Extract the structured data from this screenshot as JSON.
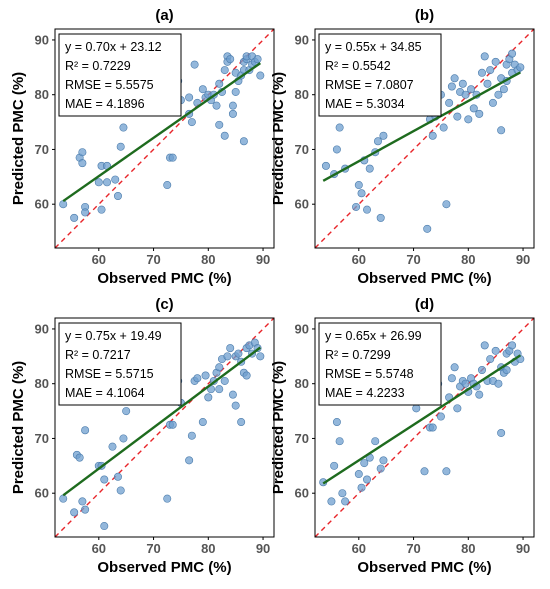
{
  "chart_data": [
    {
      "type": "scatter",
      "title": "(a)",
      "xlabel": "Observed PMC (%)",
      "ylabel": "Predicted PMC (%)",
      "xlim": [
        52,
        92
      ],
      "ylim": [
        52,
        92
      ],
      "x_ticks": [
        "60",
        "70",
        "80",
        "90"
      ],
      "y_ticks": [
        "60",
        "70",
        "80",
        "90"
      ],
      "grid": false,
      "reference_line": "y = x",
      "fit": {
        "slope": 0.7,
        "intercept": 23.12,
        "x_range": [
          53.5,
          89.5
        ]
      },
      "stats": [
        "y = 0.70x + 23.12",
        "R² = 0.7229",
        "RMSE = 5.5575",
        "MAE = 4.1896"
      ],
      "points": [
        [
          53.5,
          60
        ],
        [
          55.5,
          57.5
        ],
        [
          56.5,
          68.5
        ],
        [
          57,
          69.5
        ],
        [
          57,
          67.5
        ],
        [
          57.5,
          59.5
        ],
        [
          57.5,
          58.5
        ],
        [
          60,
          64
        ],
        [
          60.5,
          59
        ],
        [
          60.5,
          67
        ],
        [
          61.5,
          64
        ],
        [
          61.5,
          67
        ],
        [
          63,
          64.5
        ],
        [
          63.5,
          61.5
        ],
        [
          64,
          70.5
        ],
        [
          64.5,
          74
        ],
        [
          70.5,
          79.5
        ],
        [
          72.5,
          63.5
        ],
        [
          73,
          68.5
        ],
        [
          73.5,
          68.5
        ],
        [
          74.5,
          82.5
        ],
        [
          75,
          79
        ],
        [
          76.5,
          79.5
        ],
        [
          76.5,
          76.5
        ],
        [
          77,
          75
        ],
        [
          77.5,
          85.5
        ],
        [
          78,
          78.5
        ],
        [
          79,
          81
        ],
        [
          79.5,
          79.5
        ],
        [
          80,
          80
        ],
        [
          80.5,
          79
        ],
        [
          81,
          80
        ],
        [
          81.5,
          78
        ],
        [
          82,
          82
        ],
        [
          82,
          74.5
        ],
        [
          82.5,
          80.5
        ],
        [
          83,
          84.5
        ],
        [
          83,
          72.5
        ],
        [
          83.5,
          87
        ],
        [
          83.5,
          86
        ],
        [
          84,
          86.5
        ],
        [
          84.5,
          76.5
        ],
        [
          84.5,
          78
        ],
        [
          85,
          80.5
        ],
        [
          85,
          84
        ],
        [
          85.5,
          82.5
        ],
        [
          86,
          83.5
        ],
        [
          86.5,
          86
        ],
        [
          86.5,
          84.5
        ],
        [
          86.5,
          71.5
        ],
        [
          87,
          86.5
        ],
        [
          87,
          87
        ],
        [
          87.5,
          84.5
        ],
        [
          88,
          87
        ],
        [
          88,
          85.5
        ],
        [
          88.5,
          86
        ],
        [
          89,
          86.5
        ],
        [
          89.5,
          83.5
        ]
      ]
    },
    {
      "type": "scatter",
      "title": "(b)",
      "xlabel": "Observed PMC (%)",
      "ylabel": "Predicted PMC (%)",
      "xlim": [
        52,
        92
      ],
      "ylim": [
        52,
        92
      ],
      "x_ticks": [
        "60",
        "70",
        "80",
        "90"
      ],
      "y_ticks": [
        "60",
        "70",
        "80",
        "90"
      ],
      "grid": false,
      "reference_line": "y = x",
      "fit": {
        "slope": 0.55,
        "intercept": 34.85,
        "x_range": [
          53.5,
          89.5
        ]
      },
      "stats": [
        "y = 0.55x + 34.85",
        "R² = 0.5542",
        "RMSE = 7.0807",
        "MAE = 5.3034"
      ],
      "points": [
        [
          54,
          67
        ],
        [
          55.5,
          65.5
        ],
        [
          56,
          70
        ],
        [
          56.5,
          74
        ],
        [
          57.5,
          66.5
        ],
        [
          59.5,
          59.5
        ],
        [
          60,
          63.5
        ],
        [
          60.5,
          62
        ],
        [
          61,
          68
        ],
        [
          61.5,
          59
        ],
        [
          62,
          66.5
        ],
        [
          63,
          69.5
        ],
        [
          63.5,
          71.5
        ],
        [
          64,
          57.5
        ],
        [
          64.5,
          72.5
        ],
        [
          72.5,
          55.5
        ],
        [
          73,
          75.5
        ],
        [
          73.5,
          72.5
        ],
        [
          74,
          76
        ],
        [
          75,
          80
        ],
        [
          75.5,
          74
        ],
        [
          76,
          60
        ],
        [
          76.5,
          78.5
        ],
        [
          77,
          81.5
        ],
        [
          77.5,
          83
        ],
        [
          78,
          76
        ],
        [
          78.5,
          80.5
        ],
        [
          79,
          82
        ],
        [
          79.5,
          80
        ],
        [
          80,
          75.5
        ],
        [
          80.5,
          81
        ],
        [
          81,
          77.5
        ],
        [
          81.5,
          80
        ],
        [
          82,
          76.5
        ],
        [
          82.5,
          84
        ],
        [
          83,
          87
        ],
        [
          83.5,
          82
        ],
        [
          84,
          84.5
        ],
        [
          84.5,
          78.5
        ],
        [
          85,
          86
        ],
        [
          85.5,
          80
        ],
        [
          86,
          73.5
        ],
        [
          86,
          83
        ],
        [
          86.5,
          81
        ],
        [
          87,
          85.5
        ],
        [
          87,
          82.5
        ],
        [
          87.5,
          86.5
        ],
        [
          88,
          87.5
        ],
        [
          88,
          84
        ],
        [
          88.5,
          85.5
        ],
        [
          89,
          84.5
        ],
        [
          89.5,
          85
        ]
      ]
    },
    {
      "type": "scatter",
      "title": "(c)",
      "xlabel": "Observed PMC (%)",
      "ylabel": "Predicted PMC (%)",
      "xlim": [
        52,
        92
      ],
      "ylim": [
        52,
        92
      ],
      "x_ticks": [
        "60",
        "70",
        "80",
        "90"
      ],
      "y_ticks": [
        "60",
        "70",
        "80",
        "90"
      ],
      "grid": false,
      "reference_line": "y = x",
      "fit": {
        "slope": 0.75,
        "intercept": 19.49,
        "x_range": [
          53.5,
          89.5
        ]
      },
      "stats": [
        "y = 0.75x + 19.49",
        "R² = 0.7217",
        "RMSE = 5.5715",
        "MAE = 4.1064"
      ],
      "points": [
        [
          53.5,
          59
        ],
        [
          55.5,
          56.5
        ],
        [
          56,
          67
        ],
        [
          56.5,
          66.5
        ],
        [
          57,
          58.5
        ],
        [
          57.5,
          57
        ],
        [
          57.5,
          71.5
        ],
        [
          60,
          65
        ],
        [
          60.5,
          65
        ],
        [
          61,
          54
        ],
        [
          61,
          62.5
        ],
        [
          62.5,
          68.5
        ],
        [
          63.5,
          63
        ],
        [
          64,
          60.5
        ],
        [
          64.5,
          70
        ],
        [
          65,
          75
        ],
        [
          70.5,
          80
        ],
        [
          72.5,
          59
        ],
        [
          73,
          72.5
        ],
        [
          73.5,
          72.5
        ],
        [
          74.5,
          80.5
        ],
        [
          75,
          76.5
        ],
        [
          76.5,
          66
        ],
        [
          77,
          70.5
        ],
        [
          77.5,
          80.5
        ],
        [
          78,
          81
        ],
        [
          79,
          73
        ],
        [
          79.5,
          81.5
        ],
        [
          80,
          77.5
        ],
        [
          80.5,
          79
        ],
        [
          81,
          80.5
        ],
        [
          81.5,
          82
        ],
        [
          82,
          79
        ],
        [
          82,
          83
        ],
        [
          82.5,
          84.5
        ],
        [
          83,
          80.5
        ],
        [
          83.5,
          85
        ],
        [
          84,
          86.5
        ],
        [
          84.5,
          78
        ],
        [
          85,
          76
        ],
        [
          85,
          85
        ],
        [
          85.5,
          85.5
        ],
        [
          86,
          84
        ],
        [
          86,
          73
        ],
        [
          86.5,
          82
        ],
        [
          87,
          86.5
        ],
        [
          87,
          81.5
        ],
        [
          87.5,
          87
        ],
        [
          88,
          85.5
        ],
        [
          88.5,
          87.5
        ],
        [
          89,
          86.5
        ],
        [
          89.5,
          85
        ]
      ]
    },
    {
      "type": "scatter",
      "title": "(d)",
      "xlabel": "Observed PMC (%)",
      "ylabel": "Predicted PMC (%)",
      "xlim": [
        52,
        92
      ],
      "ylim": [
        52,
        92
      ],
      "x_ticks": [
        "60",
        "70",
        "80",
        "90"
      ],
      "y_ticks": [
        "60",
        "70",
        "80",
        "90"
      ],
      "grid": false,
      "reference_line": "y = x",
      "fit": {
        "slope": 0.65,
        "intercept": 26.99,
        "x_range": [
          53.5,
          89.5
        ]
      },
      "stats": [
        "y = 0.65x + 26.99",
        "R² = 0.7299",
        "RMSE = 5.5748",
        "MAE = 4.2233"
      ],
      "points": [
        [
          53.5,
          62
        ],
        [
          55,
          58.5
        ],
        [
          55.5,
          65
        ],
        [
          56,
          73
        ],
        [
          56.5,
          69.5
        ],
        [
          57,
          60
        ],
        [
          57.5,
          58.5
        ],
        [
          60,
          63.5
        ],
        [
          60.5,
          61
        ],
        [
          61,
          65.5
        ],
        [
          61.5,
          62.5
        ],
        [
          62,
          66.5
        ],
        [
          63,
          69.5
        ],
        [
          64,
          64.5
        ],
        [
          64.5,
          66
        ],
        [
          70.5,
          75.5
        ],
        [
          72,
          64
        ],
        [
          73,
          72
        ],
        [
          73.5,
          72
        ],
        [
          74.5,
          80
        ],
        [
          75,
          74
        ],
        [
          76,
          64
        ],
        [
          76.5,
          77.5
        ],
        [
          77,
          81
        ],
        [
          77.5,
          83
        ],
        [
          78,
          75.5
        ],
        [
          78.5,
          79.5
        ],
        [
          79,
          80.5
        ],
        [
          79.5,
          80
        ],
        [
          80,
          78.5
        ],
        [
          80.5,
          81
        ],
        [
          81,
          80
        ],
        [
          81.5,
          79.5
        ],
        [
          82,
          78
        ],
        [
          82.5,
          82.5
        ],
        [
          83,
          87
        ],
        [
          83.5,
          80.5
        ],
        [
          84,
          84.5
        ],
        [
          84.5,
          80.5
        ],
        [
          85,
          86
        ],
        [
          85.5,
          80
        ],
        [
          86,
          71
        ],
        [
          86,
          83
        ],
        [
          86.5,
          82
        ],
        [
          87,
          85.5
        ],
        [
          87,
          82.5
        ],
        [
          87.5,
          86
        ],
        [
          88,
          87
        ],
        [
          88.5,
          84
        ],
        [
          89,
          85.5
        ],
        [
          89.5,
          84.5
        ]
      ]
    }
  ]
}
